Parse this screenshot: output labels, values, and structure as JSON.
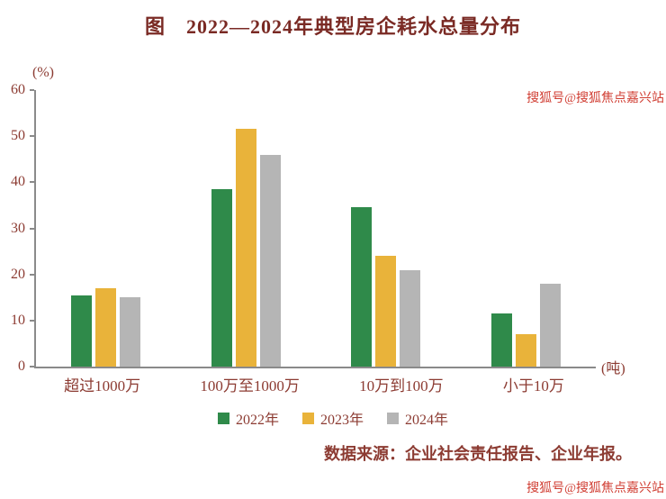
{
  "page": {
    "source": "数据来源：企业社会责任报告、企业年报。",
    "watermark": "搜狐号@搜狐焦点嘉兴站"
  },
  "chart_data": {
    "type": "bar",
    "title": "图　2022—2024年典型房企耗水总量分布",
    "y_unit": "(%)",
    "x_unit": "(吨)",
    "categories": [
      "超过1000万",
      "100万至1000万",
      "10万到100万",
      "小于10万"
    ],
    "series": [
      {
        "name": "2022年",
        "color": "#2f8a4a",
        "values": [
          15.5,
          38.5,
          34.5,
          11.5
        ]
      },
      {
        "name": "2023年",
        "color": "#e9b33a",
        "values": [
          17,
          51.5,
          24,
          7
        ]
      },
      {
        "name": "2024年",
        "color": "#b5b5b5",
        "values": [
          15,
          46,
          21,
          18
        ]
      }
    ],
    "ylim": [
      0,
      60
    ],
    "yticks": [
      0,
      10,
      20,
      30,
      40,
      50,
      60
    ],
    "grid": false,
    "legend_position": "bottom"
  }
}
